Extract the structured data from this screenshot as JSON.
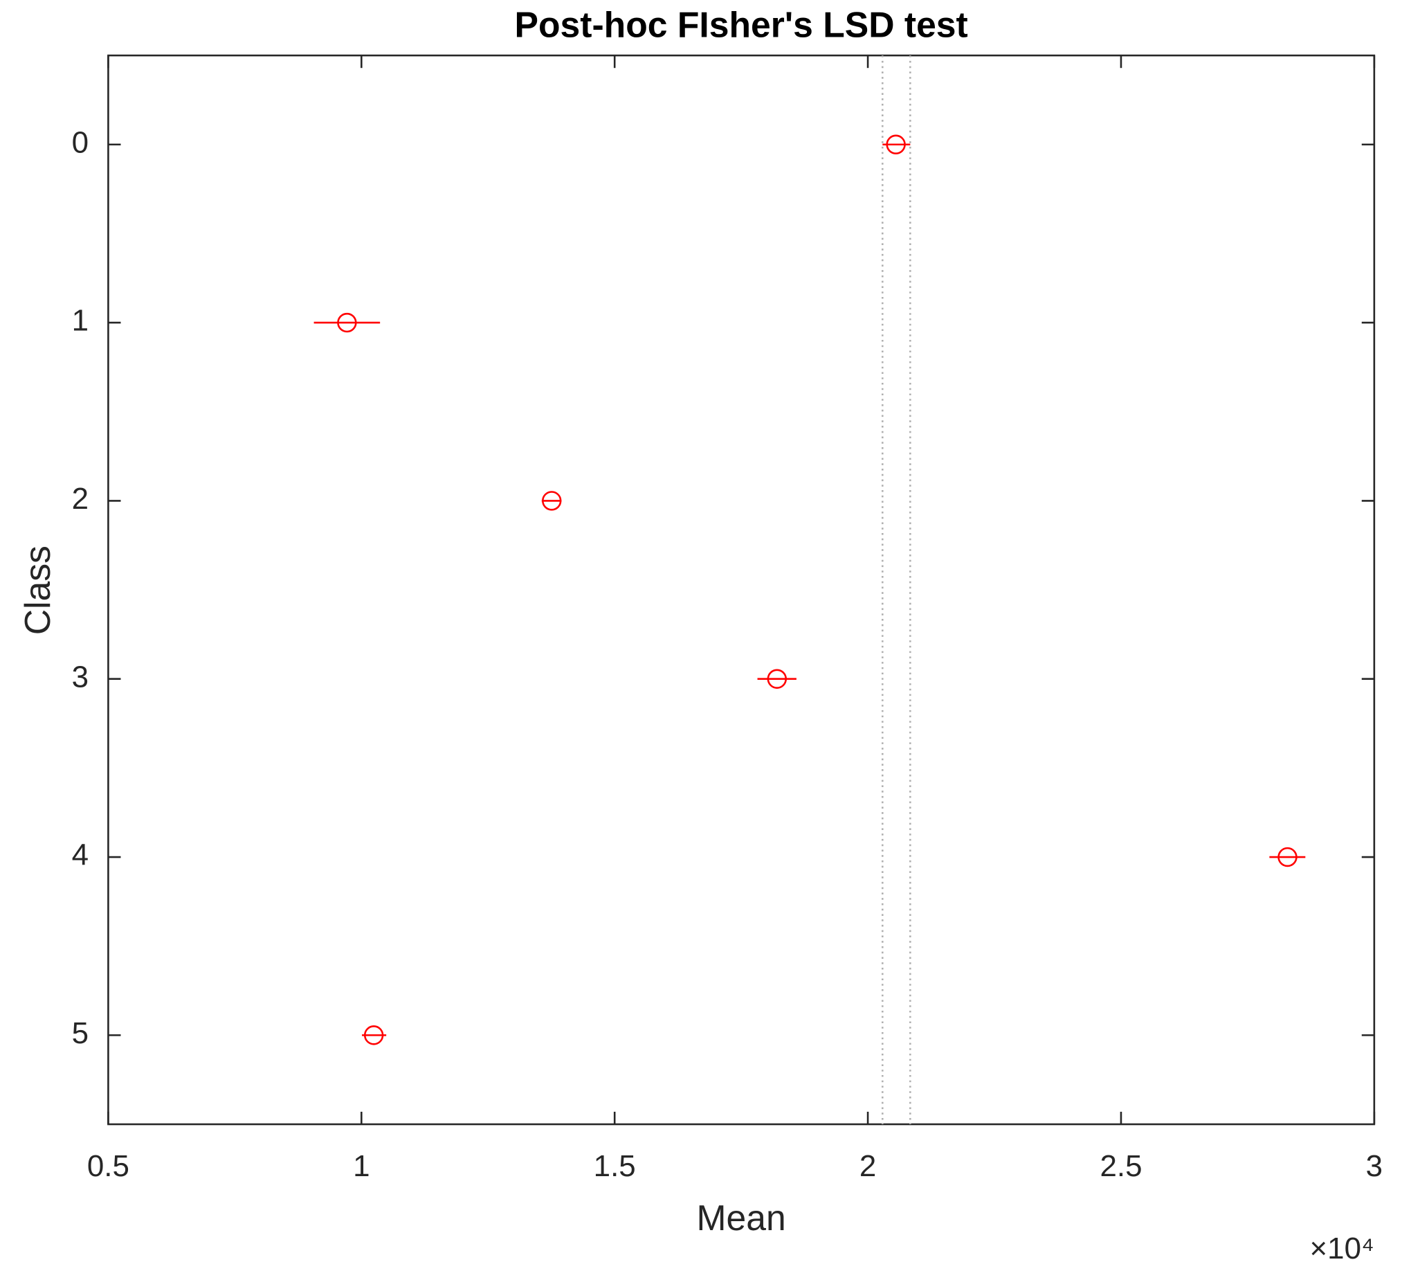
{
  "chart_data": {
    "type": "interval",
    "title": "Post-hoc FIsher's LSD test",
    "x_label": "Mean",
    "y_label": "Class",
    "x_multiplier": "×10⁴",
    "categories": [
      "0",
      "1",
      "2",
      "3",
      "4",
      "5"
    ],
    "series": [
      {
        "color": "#ff0000",
        "values": [
          20554,
          9714,
          13757,
          18206,
          28287,
          10244
        ],
        "lower": [
          20290,
          9061,
          13560,
          17820,
          27930,
          10010
        ],
        "upper": [
          20837,
          10367,
          13950,
          18590,
          28640,
          10490
        ]
      }
    ],
    "xlim": [
      5000,
      30000
    ],
    "xticks": [
      {
        "value": 5000,
        "label": "0.5"
      },
      {
        "value": 10000,
        "label": "1"
      },
      {
        "value": 15000,
        "label": "1.5"
      },
      {
        "value": 20000,
        "label": "2"
      },
      {
        "value": 25000,
        "label": "2.5"
      },
      {
        "value": 30000,
        "label": "3"
      }
    ]
  }
}
